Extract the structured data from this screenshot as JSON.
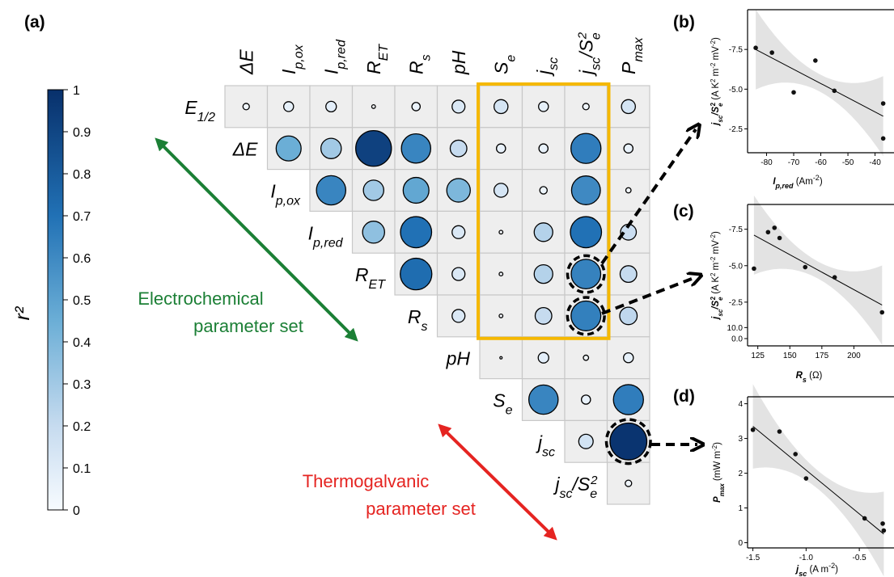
{
  "panel_labels": {
    "a": "(a)",
    "b": "(b)",
    "c": "(c)",
    "d": "(d)"
  },
  "colorbar": {
    "label": "r²",
    "ticks": [
      "0",
      "0.1",
      "0.2",
      "0.3",
      "0.4",
      "0.5",
      "0.6",
      "0.7",
      "0.8",
      "0.9",
      "1"
    ],
    "low_color": "#f7fbff",
    "high_color": "#08306b"
  },
  "set_labels": {
    "electrochemical": [
      "Electrochemical",
      "parameter set"
    ],
    "thermogalvanic": [
      "Thermogalvanic",
      "parameter set"
    ],
    "electrochemical_color": "#1b7f35",
    "thermogalvanic_color": "#e52421"
  },
  "highlight_color": "#f5b800",
  "chart_data": [
    {
      "type": "heatmap",
      "subtype": "upper-triangular correlation circles",
      "columns": [
        "ΔE",
        "Ip,ox",
        "Ip,red",
        "RET",
        "Rs",
        "pH",
        "Se",
        "jsc",
        "jsc/Se²",
        "Pmax"
      ],
      "rows": [
        "E1/2",
        "ΔE",
        "Ip,ox",
        "Ip,red",
        "RET",
        "Rs",
        "pH",
        "Se",
        "jsc",
        "jsc/Se²"
      ],
      "column_labels": [
        {
          "base": "ΔE",
          "sub": "",
          "sup": ""
        },
        {
          "base": "I",
          "sub": "p,ox",
          "sup": ""
        },
        {
          "base": "I",
          "sub": "p,red",
          "sup": ""
        },
        {
          "base": "R",
          "sub": "ET",
          "sup": ""
        },
        {
          "base": "R",
          "sub": "s",
          "sup": ""
        },
        {
          "base": "pH",
          "sub": "",
          "sup": ""
        },
        {
          "base": "S",
          "sub": "e",
          "sup": ""
        },
        {
          "base": "j",
          "sub": "sc",
          "sup": ""
        },
        {
          "base": "j",
          "sub": "sc",
          "sup": "",
          "tail": "/S",
          "tail_sub": "e",
          "tail_sup": "2"
        },
        {
          "base": "P",
          "sub": "max",
          "sup": ""
        }
      ],
      "row_labels": [
        {
          "base": "E",
          "sub": "1/2"
        },
        {
          "base": "ΔE",
          "sub": ""
        },
        {
          "base": "I",
          "sub": "p,ox"
        },
        {
          "base": "I",
          "sub": "p,red"
        },
        {
          "base": "R",
          "sub": "ET"
        },
        {
          "base": "R",
          "sub": "s"
        },
        {
          "base": "pH",
          "sub": ""
        },
        {
          "base": "S",
          "sub": "e"
        },
        {
          "base": "j",
          "sub": "sc"
        },
        {
          "base": "j",
          "sub": "sc",
          "tail": "/S",
          "tail_sub": "e",
          "tail_sup": "2"
        }
      ],
      "values": [
        [
          0.03,
          0.07,
          0.08,
          0.01,
          0.05,
          0.12,
          0.14,
          0.07,
          0.03,
          0.14
        ],
        [
          null,
          0.45,
          0.3,
          0.92,
          0.62,
          0.2,
          0.06,
          0.06,
          0.65,
          0.06
        ],
        [
          null,
          null,
          0.62,
          0.3,
          0.48,
          0.4,
          0.14,
          0.04,
          0.6,
          0.02
        ],
        [
          null,
          null,
          null,
          0.35,
          0.7,
          0.12,
          0.01,
          0.25,
          0.7,
          0.18
        ],
        [
          null,
          null,
          null,
          null,
          0.72,
          0.12,
          0.01,
          0.25,
          0.63,
          0.2
        ],
        [
          null,
          null,
          null,
          null,
          null,
          0.12,
          0.01,
          0.2,
          0.64,
          0.22
        ],
        [
          null,
          null,
          null,
          null,
          null,
          null,
          0.0,
          0.08,
          0.02,
          0.07
        ],
        [
          null,
          null,
          null,
          null,
          null,
          null,
          null,
          0.62,
          0.06,
          0.65
        ],
        [
          null,
          null,
          null,
          null,
          null,
          null,
          null,
          null,
          0.15,
          0.98
        ],
        [
          null,
          null,
          null,
          null,
          null,
          null,
          null,
          null,
          null,
          0.03
        ]
      ],
      "highlight_block": {
        "rows": [
          "E1/2",
          "Rs"
        ],
        "columns": [
          "Se",
          "jsc/Se²"
        ]
      },
      "dashed_cells": [
        {
          "row": "RET",
          "column": "jsc/Se²",
          "panel": "(b)"
        },
        {
          "row": "Rs",
          "column": "jsc/Se²",
          "panel": "(c)"
        },
        {
          "row": "jsc",
          "column": "Pmax",
          "panel": "(d)"
        }
      ]
    },
    {
      "type": "scatter",
      "panel": "(b)",
      "xlabel": "Ip,red (Am⁻²)",
      "ylabel": "jsc/Se² (A K² m⁻² mV⁻²)",
      "x_ticks": [
        -80,
        -70,
        -60,
        -50,
        -40
      ],
      "y_ticks": [
        "-2.5",
        "-5.0",
        "-7.5",
        "10.0"
      ],
      "xlim": [
        -87,
        -36
      ],
      "ylim": [
        -1.0,
        -10.0
      ],
      "points": [
        [
          -84,
          -7.6
        ],
        [
          -78,
          -7.3
        ],
        [
          -70,
          -4.8
        ],
        [
          -62,
          -6.8
        ],
        [
          -55,
          -4.9
        ],
        [
          -37,
          -1.9
        ],
        [
          -37,
          -4.1
        ]
      ],
      "fit": [
        [
          -84,
          -7.5
        ],
        [
          -37,
          -3.3
        ]
      ]
    },
    {
      "type": "scatter",
      "panel": "(c)",
      "xlabel": "Rs (Ω)",
      "ylabel": "jsc/Se² (A K² m⁻² mV⁻²)",
      "x_ticks": [
        125,
        150,
        175,
        200
      ],
      "y_ticks": [
        "0.0",
        "-2.5",
        "-5.0",
        "-7.5"
      ],
      "xlim": [
        117,
        225
      ],
      "ylim": [
        0.5,
        -9.2
      ],
      "points": [
        [
          122,
          -4.8
        ],
        [
          133,
          -7.3
        ],
        [
          138,
          -7.6
        ],
        [
          142,
          -6.9
        ],
        [
          162,
          -4.9
        ],
        [
          185,
          -4.2
        ],
        [
          222,
          -1.8
        ]
      ],
      "fit": [
        [
          122,
          -7.1
        ],
        [
          222,
          -2.3
        ]
      ]
    },
    {
      "type": "scatter",
      "panel": "(d)",
      "xlabel": "jsc (A m⁻²)",
      "ylabel": "Pmax (mW m⁻²)",
      "x_ticks": [
        "-1.5",
        "-1.0",
        "-0.5"
      ],
      "y_ticks": [
        "0",
        "1",
        "2",
        "3",
        "4"
      ],
      "xlim": [
        -1.55,
        -0.25
      ],
      "ylim": [
        -0.15,
        4.2
      ],
      "points": [
        [
          -1.5,
          3.25
        ],
        [
          -1.25,
          3.2
        ],
        [
          -1.1,
          2.55
        ],
        [
          -1.0,
          1.85
        ],
        [
          -0.45,
          0.7
        ],
        [
          -0.28,
          0.55
        ],
        [
          -0.27,
          0.35
        ]
      ],
      "fit": [
        [
          -1.5,
          3.35
        ],
        [
          -0.27,
          0.25
        ]
      ]
    }
  ]
}
